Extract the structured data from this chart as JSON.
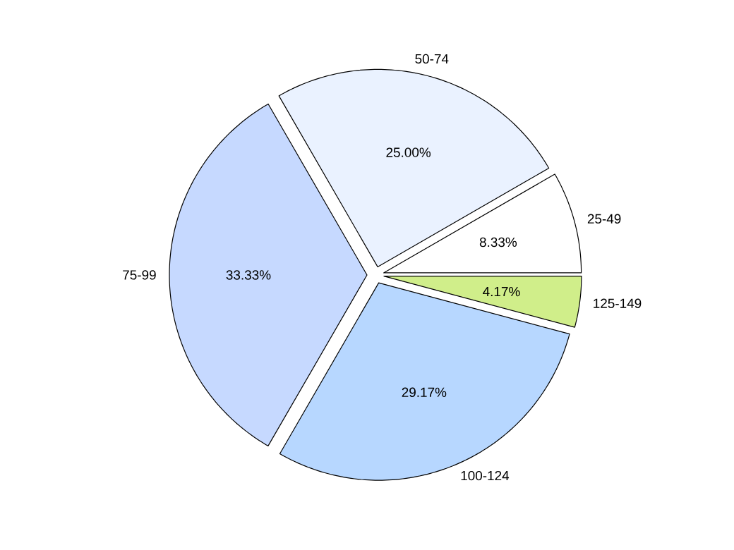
{
  "chart_data": {
    "type": "pie",
    "categories": [
      "25-49",
      "50-74",
      "75-99",
      "100-124",
      "125-149"
    ],
    "values": [
      8.33,
      25,
      33.33,
      29.17,
      4.17
    ],
    "colors": [
      "#ffffff",
      "#eaf2ff",
      "#c6d9ff",
      "#b7d7ff",
      "#d0ee8a"
    ],
    "value_labels": [
      "8.33%",
      "25.00%",
      "33.33%",
      "29.17%",
      "4.17%"
    ],
    "legend": false
  }
}
